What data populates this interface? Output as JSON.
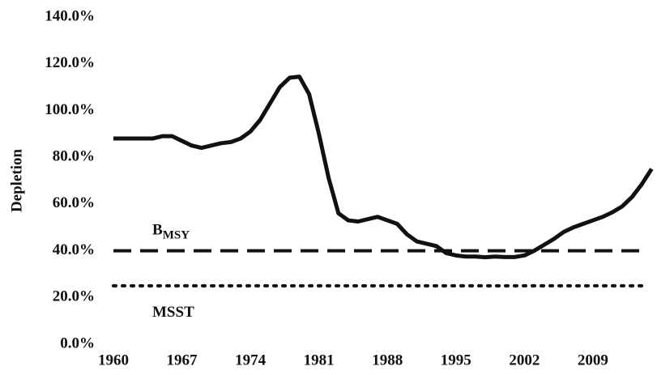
{
  "chart_data": {
    "type": "line",
    "y_label": "Depletion",
    "x": [
      1960,
      1961,
      1962,
      1963,
      1964,
      1965,
      1966,
      1967,
      1968,
      1969,
      1970,
      1971,
      1972,
      1973,
      1974,
      1975,
      1976,
      1977,
      1978,
      1979,
      1980,
      1981,
      1982,
      1983,
      1984,
      1985,
      1986,
      1987,
      1988,
      1989,
      1990,
      1991,
      1992,
      1993,
      1994,
      1995,
      1996,
      1997,
      1998,
      1999,
      2000,
      2001,
      2002,
      2003,
      2004,
      2005,
      2006,
      2007,
      2008,
      2009,
      2010,
      2011,
      2012,
      2013,
      2014,
      2015
    ],
    "series": [
      {
        "color": "#111111",
        "values": [
          88,
          88,
          88,
          88,
          88,
          89,
          89,
          87,
          85,
          84,
          85,
          86,
          86.5,
          88,
          91,
          96,
          103,
          110,
          114,
          114.5,
          107,
          90,
          71,
          56,
          53,
          52.5,
          53.5,
          54.5,
          53,
          51.5,
          47,
          44,
          43,
          42,
          39,
          38,
          37.5,
          37.5,
          37.2,
          37.5,
          37.3,
          37.3,
          38,
          40,
          42.5,
          45,
          48,
          50,
          51.5,
          53,
          54.5,
          56.5,
          59,
          63,
          68.5,
          75
        ]
      }
    ],
    "reference_lines": [
      {
        "text": "B",
        "subscript": "MSY",
        "value": 40,
        "style": "dashed"
      },
      {
        "text": "MSST",
        "value": 25,
        "style": "dotted"
      }
    ],
    "xlim": [
      1960,
      2015.3
    ],
    "xticks": [
      1960,
      1967,
      1974,
      1981,
      1988,
      1995,
      2002,
      2009
    ],
    "ylim": [
      0,
      140
    ],
    "yticks": [
      {
        "value": 0,
        "label": "0.0%"
      },
      {
        "value": 20,
        "label": "20.0%"
      },
      {
        "value": 40,
        "label": "40.0%"
      },
      {
        "value": 60,
        "label": "60.0%"
      },
      {
        "value": 80,
        "label": "80.0%"
      },
      {
        "value": 100,
        "label": "100.0%"
      },
      {
        "value": 120,
        "label": "120.0%"
      },
      {
        "value": 140,
        "label": "140.0%"
      }
    ],
    "grid": false
  }
}
